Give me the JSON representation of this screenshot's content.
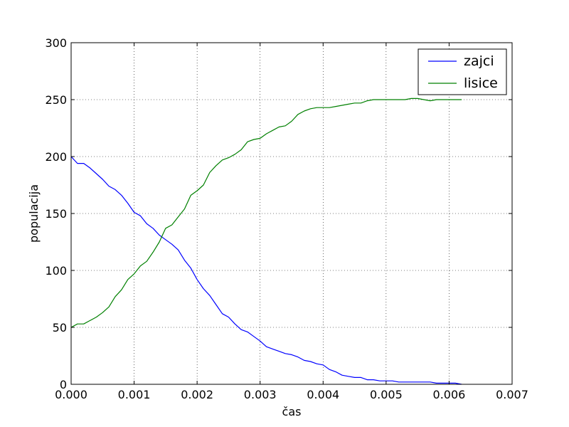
{
  "chart_data": {
    "type": "line",
    "title": "",
    "xlabel": "čas",
    "ylabel": "populacija",
    "xlim": [
      0,
      0.007
    ],
    "ylim": [
      0,
      300
    ],
    "xticks": [
      "0.000",
      "0.001",
      "0.002",
      "0.003",
      "0.004",
      "0.005",
      "0.006",
      "0.007"
    ],
    "yticks": [
      "0",
      "50",
      "100",
      "150",
      "200",
      "250",
      "300"
    ],
    "grid": true,
    "legend_position": "top-right",
    "series": [
      {
        "name": "zajci",
        "color": "#0000ff",
        "x": [
          0,
          0.0001,
          0.0002,
          0.0003,
          0.0004,
          0.0005,
          0.0006,
          0.0007,
          0.0008,
          0.0009,
          0.001,
          0.0011,
          0.0012,
          0.0013,
          0.0014,
          0.0015,
          0.0016,
          0.0017,
          0.0018,
          0.0019,
          0.002,
          0.0021,
          0.0022,
          0.0023,
          0.0024,
          0.0025,
          0.0026,
          0.0027,
          0.0028,
          0.0029,
          0.003,
          0.0031,
          0.0032,
          0.0033,
          0.0034,
          0.0035,
          0.0036,
          0.0037,
          0.0038,
          0.0039,
          0.004,
          0.0041,
          0.0042,
          0.0043,
          0.0044,
          0.0045,
          0.0046,
          0.0047,
          0.0048,
          0.0049,
          0.005,
          0.0051,
          0.0052,
          0.0053,
          0.0054,
          0.0055,
          0.0056,
          0.0057,
          0.0058,
          0.0059,
          0.006,
          0.0061,
          0.0062
        ],
        "y": [
          200,
          194,
          194,
          190,
          185,
          180,
          174,
          171,
          166,
          159,
          151,
          148,
          141,
          137,
          131,
          127,
          123,
          118,
          109,
          102,
          92,
          84,
          78,
          70,
          62,
          59,
          53,
          48,
          46,
          42,
          38,
          33,
          31,
          29,
          27,
          26,
          24,
          21,
          20,
          18,
          17,
          13,
          11,
          8,
          7,
          6,
          6,
          4,
          4,
          3,
          3,
          3,
          2,
          2,
          2,
          2,
          2,
          2,
          1,
          1,
          1,
          1,
          0
        ]
      },
      {
        "name": "lisice",
        "color": "#008000",
        "x": [
          0,
          0.0001,
          0.0002,
          0.0003,
          0.0004,
          0.0005,
          0.0006,
          0.0007,
          0.0008,
          0.0009,
          0.001,
          0.0011,
          0.0012,
          0.0013,
          0.0014,
          0.0015,
          0.0016,
          0.0017,
          0.0018,
          0.0019,
          0.002,
          0.0021,
          0.0022,
          0.0023,
          0.0024,
          0.0025,
          0.0026,
          0.0027,
          0.0028,
          0.0029,
          0.003,
          0.0031,
          0.0032,
          0.0033,
          0.0034,
          0.0035,
          0.0036,
          0.0037,
          0.0038,
          0.0039,
          0.004,
          0.0041,
          0.0042,
          0.0043,
          0.0044,
          0.0045,
          0.0046,
          0.0047,
          0.0048,
          0.0049,
          0.005,
          0.0051,
          0.0052,
          0.0053,
          0.0054,
          0.0055,
          0.0056,
          0.0057,
          0.0058,
          0.0059,
          0.006,
          0.0061,
          0.0062
        ],
        "y": [
          50,
          53,
          53,
          56,
          59,
          63,
          68,
          77,
          83,
          92,
          97,
          104,
          108,
          116,
          125,
          137,
          140,
          147,
          154,
          166,
          170,
          175,
          186,
          192,
          197,
          199,
          202,
          206,
          213,
          215,
          216,
          220,
          223,
          226,
          227,
          231,
          237,
          240,
          242,
          243,
          243,
          243,
          244,
          245,
          246,
          247,
          247,
          249,
          250,
          250,
          250,
          250,
          250,
          250,
          251,
          251,
          250,
          249,
          250,
          250,
          250,
          250,
          250
        ]
      }
    ]
  }
}
